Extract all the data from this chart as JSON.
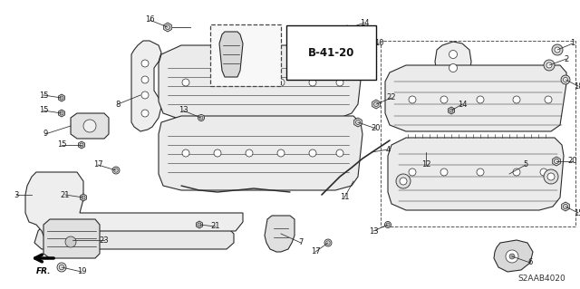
{
  "background_color": "#f5f5f0",
  "diagram_code": "S2AAB4020",
  "figsize": [
    6.4,
    3.19
  ],
  "dpi": 100,
  "line_color": "#2a2a2a",
  "text_color": "#1a1a1a",
  "bold_label": "B-41-20",
  "label_fontsize": 7.0,
  "small_fontsize": 6.0
}
